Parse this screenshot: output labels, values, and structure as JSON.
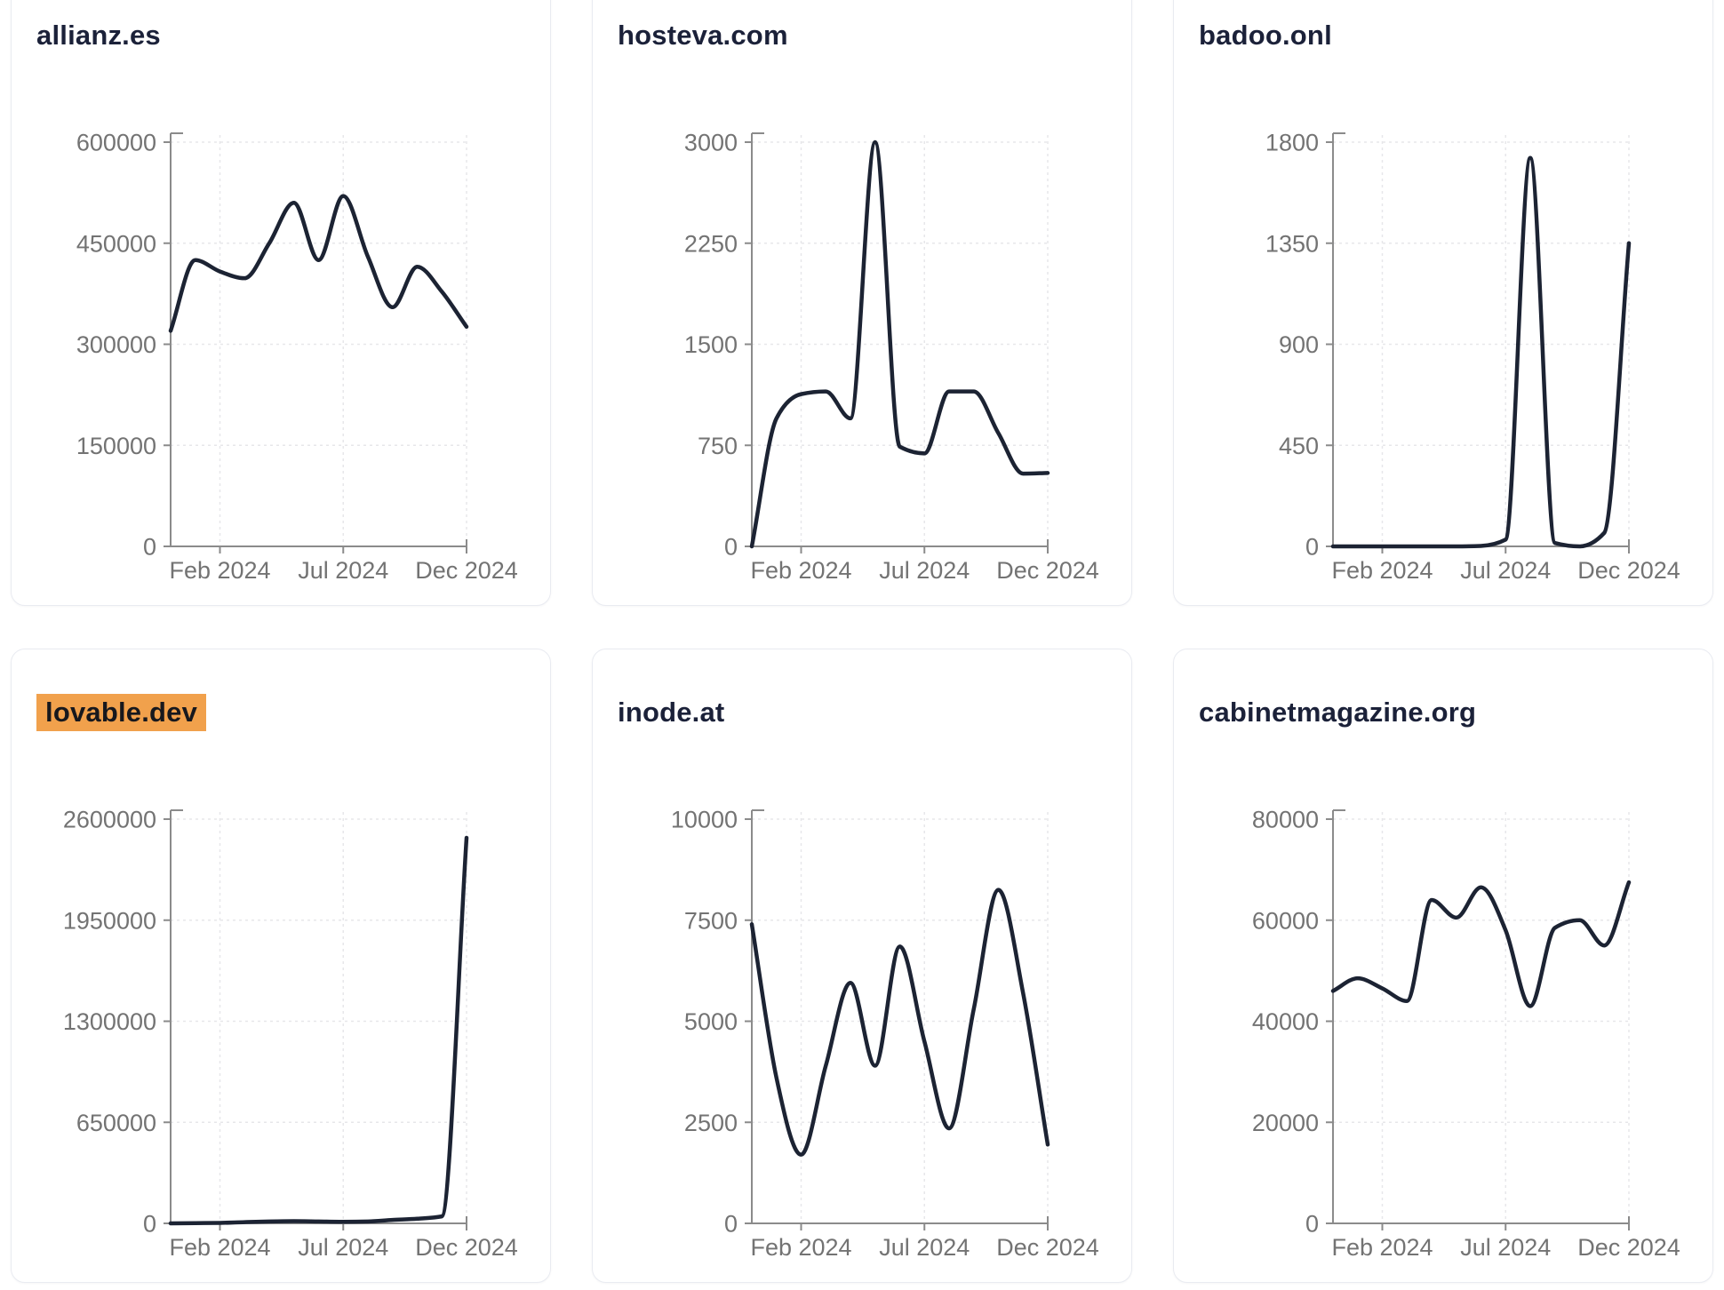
{
  "page": {
    "background": "#ffffff"
  },
  "styles": {
    "card_background": "#ffffff",
    "card_border": "#e9ebf1",
    "title_color": "#1b2139",
    "highlight_background": "#f1a14c",
    "highlight_text": "#17181d",
    "line_color": "#1c2333",
    "axis_color": "#8b8b8b",
    "tick_label_color": "#737373",
    "grid_color": "#e7e7ea"
  },
  "chart_data": [
    {
      "type": "line",
      "title": "allianz.es",
      "title_highlighted": false,
      "x": [
        "Dec 2023",
        "Jan 2024",
        "Feb 2024",
        "Mar 2024",
        "Apr 2024",
        "May 2024",
        "Jun 2024",
        "Jul 2024",
        "Aug 2024",
        "Sep 2024",
        "Oct 2024",
        "Nov 2024",
        "Dec 2024"
      ],
      "values": [
        320000,
        425000,
        408000,
        398000,
        450000,
        510000,
        425000,
        520000,
        430000,
        355000,
        415000,
        378000,
        326000
      ],
      "y_ticks": [
        0,
        150000,
        300000,
        450000,
        600000
      ],
      "ylim": [
        0,
        600000
      ],
      "x_tick_labels": [
        "Feb 2024",
        "Jul 2024",
        "Dec 2024"
      ],
      "x_tick_indices": [
        2,
        7,
        12
      ],
      "grid": true,
      "legend": false
    },
    {
      "type": "line",
      "title": "hosteva.com",
      "title_highlighted": false,
      "x": [
        "Dec 2023",
        "Jan 2024",
        "Feb 2024",
        "Mar 2024",
        "Apr 2024",
        "May 2024",
        "Jun 2024",
        "Jul 2024",
        "Aug 2024",
        "Sep 2024",
        "Oct 2024",
        "Nov 2024",
        "Dec 2024"
      ],
      "values": [
        0,
        950,
        1130,
        1150,
        950,
        3000,
        740,
        690,
        1150,
        1150,
        840,
        540,
        545
      ],
      "y_ticks": [
        0,
        750,
        1500,
        2250,
        3000
      ],
      "ylim": [
        0,
        3000
      ],
      "x_tick_labels": [
        "Feb 2024",
        "Jul 2024",
        "Dec 2024"
      ],
      "x_tick_indices": [
        2,
        7,
        12
      ],
      "grid": true,
      "legend": false
    },
    {
      "type": "line",
      "title": "badoo.onl",
      "title_highlighted": false,
      "x": [
        "Dec 2023",
        "Jan 2024",
        "Feb 2024",
        "Mar 2024",
        "Apr 2024",
        "May 2024",
        "Jun 2024",
        "Jul 2024",
        "Aug 2024",
        "Sep 2024",
        "Oct 2024",
        "Nov 2024",
        "Dec 2024"
      ],
      "values": [
        0,
        0,
        0,
        0,
        0,
        0,
        2,
        30,
        1730,
        15,
        0,
        60,
        1350
      ],
      "y_ticks": [
        0,
        450,
        900,
        1350,
        1800
      ],
      "ylim": [
        0,
        1800
      ],
      "x_tick_labels": [
        "Feb 2024",
        "Jul 2024",
        "Dec 2024"
      ],
      "x_tick_indices": [
        2,
        7,
        12
      ],
      "grid": true,
      "legend": false
    },
    {
      "type": "line",
      "title": "lovable.dev",
      "title_highlighted": true,
      "x": [
        "Dec 2023",
        "Jan 2024",
        "Feb 2024",
        "Mar 2024",
        "Apr 2024",
        "May 2024",
        "Jun 2024",
        "Jul 2024",
        "Aug 2024",
        "Sep 2024",
        "Oct 2024",
        "Nov 2024",
        "Dec 2024"
      ],
      "values": [
        0,
        1500,
        3000,
        8000,
        12000,
        14000,
        12000,
        10000,
        12000,
        22000,
        30000,
        45000,
        2480000
      ],
      "y_ticks": [
        0,
        650000,
        1300000,
        1950000,
        2600000
      ],
      "ylim": [
        0,
        2600000
      ],
      "x_tick_labels": [
        "Feb 2024",
        "Jul 2024",
        "Dec 2024"
      ],
      "x_tick_indices": [
        2,
        7,
        12
      ],
      "grid": true,
      "legend": false
    },
    {
      "type": "line",
      "title": "inode.at",
      "title_highlighted": false,
      "x": [
        "Dec 2023",
        "Jan 2024",
        "Feb 2024",
        "Mar 2024",
        "Apr 2024",
        "May 2024",
        "Jun 2024",
        "Jul 2024",
        "Aug 2024",
        "Sep 2024",
        "Oct 2024",
        "Nov 2024",
        "Dec 2024"
      ],
      "values": [
        7400,
        3600,
        1700,
        3900,
        5950,
        3900,
        6850,
        4500,
        2350,
        5300,
        8250,
        5700,
        1950
      ],
      "y_ticks": [
        0,
        2500,
        5000,
        7500,
        10000
      ],
      "ylim": [
        0,
        10000
      ],
      "x_tick_labels": [
        "Feb 2024",
        "Jul 2024",
        "Dec 2024"
      ],
      "x_tick_indices": [
        2,
        7,
        12
      ],
      "grid": true,
      "legend": false
    },
    {
      "type": "line",
      "title": "cabinetmagazine.org",
      "title_highlighted": false,
      "x": [
        "Dec 2023",
        "Jan 2024",
        "Feb 2024",
        "Mar 2024",
        "Apr 2024",
        "May 2024",
        "Jun 2024",
        "Jul 2024",
        "Aug 2024",
        "Sep 2024",
        "Oct 2024",
        "Nov 2024",
        "Dec 2024"
      ],
      "values": [
        46000,
        48500,
        46500,
        44000,
        64000,
        60500,
        66500,
        58000,
        43000,
        58500,
        60000,
        55000,
        67500
      ],
      "y_ticks": [
        0,
        20000,
        40000,
        60000,
        80000
      ],
      "ylim": [
        0,
        80000
      ],
      "x_tick_labels": [
        "Feb 2024",
        "Jul 2024",
        "Dec 2024"
      ],
      "x_tick_indices": [
        2,
        7,
        12
      ],
      "grid": true,
      "legend": false
    }
  ]
}
